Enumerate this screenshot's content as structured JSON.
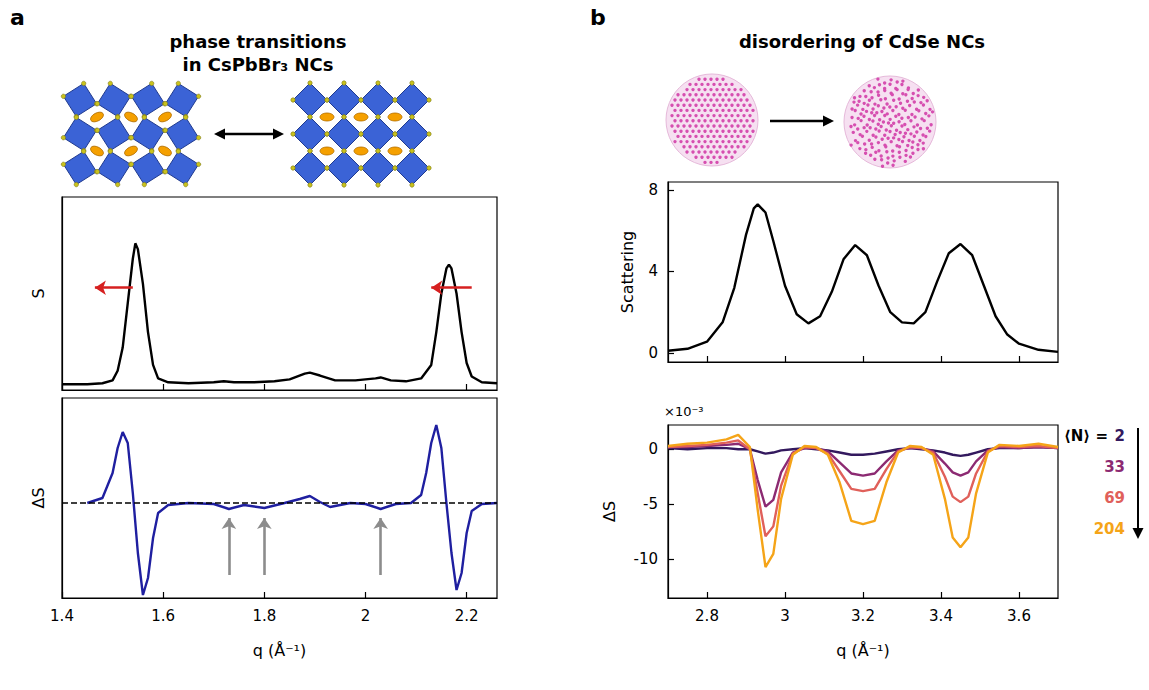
{
  "panels": [
    {
      "letter": "a",
      "title": "phase transitions in CsPbBr₃ NCs"
    },
    {
      "letter": "b",
      "title": "disordering of CdSe NCs"
    }
  ],
  "chart_data": [
    {
      "type": "line",
      "ylabel": "S",
      "color": "#000000",
      "x": [
        1.4,
        1.45,
        1.48,
        1.5,
        1.51,
        1.52,
        1.53,
        1.54,
        1.545,
        1.55,
        1.56,
        1.57,
        1.58,
        1.59,
        1.61,
        1.65,
        1.7,
        1.72,
        1.74,
        1.78,
        1.82,
        1.85,
        1.88,
        1.89,
        1.91,
        1.94,
        1.98,
        2.02,
        2.03,
        2.05,
        2.08,
        2.11,
        2.13,
        2.14,
        2.15,
        2.16,
        2.165,
        2.17,
        2.18,
        2.19,
        2.2,
        2.21,
        2.23,
        2.26
      ],
      "values": [
        0.03,
        0.03,
        0.035,
        0.05,
        0.1,
        0.22,
        0.45,
        0.68,
        0.76,
        0.73,
        0.55,
        0.3,
        0.13,
        0.06,
        0.04,
        0.035,
        0.04,
        0.045,
        0.04,
        0.04,
        0.045,
        0.055,
        0.085,
        0.09,
        0.075,
        0.05,
        0.05,
        0.06,
        0.065,
        0.05,
        0.045,
        0.06,
        0.13,
        0.3,
        0.5,
        0.63,
        0.65,
        0.63,
        0.5,
        0.3,
        0.14,
        0.07,
        0.04,
        0.035
      ],
      "xlim": [
        1.4,
        2.26
      ],
      "xticks": [
        1.4,
        1.6,
        1.8,
        2,
        2.2
      ],
      "ylim": [
        0,
        1
      ],
      "tick_labels": false,
      "arrows": [
        {
          "x": [
            1.54,
            1.465
          ],
          "y": [
            0.53,
            0.53
          ],
          "color": "#d62020"
        },
        {
          "x": [
            2.21,
            2.13
          ],
          "y": [
            0.53,
            0.53
          ],
          "color": "#d62020"
        }
      ]
    },
    {
      "type": "line",
      "ylabel": "ΔS",
      "xlabel": "q (Å⁻¹)",
      "color": "#1f1fa0",
      "x": [
        1.45,
        1.48,
        1.5,
        1.51,
        1.52,
        1.53,
        1.54,
        1.55,
        1.56,
        1.57,
        1.58,
        1.59,
        1.61,
        1.65,
        1.7,
        1.73,
        1.76,
        1.8,
        1.84,
        1.87,
        1.89,
        1.91,
        1.93,
        1.97,
        2.0,
        2.03,
        2.06,
        2.09,
        2.11,
        2.12,
        2.13,
        2.14,
        2.15,
        2.16,
        2.17,
        2.18,
        2.19,
        2.2,
        2.21,
        2.23,
        2.26
      ],
      "values": [
        0,
        0.05,
        0.3,
        0.55,
        0.71,
        0.6,
        0.1,
        -0.5,
        -0.92,
        -0.75,
        -0.35,
        -0.1,
        -0.02,
        0,
        -0.01,
        -0.06,
        -0.02,
        -0.05,
        0,
        0.04,
        0.07,
        0.01,
        -0.04,
        0,
        -0.01,
        -0.06,
        -0.01,
        0,
        0.08,
        0.3,
        0.6,
        0.78,
        0.55,
        0,
        -0.5,
        -0.87,
        -0.7,
        -0.3,
        -0.08,
        -0.01,
        0
      ],
      "xlim": [
        1.4,
        2.26
      ],
      "xticks": [
        1.4,
        1.6,
        1.8,
        2,
        2.2
      ],
      "ylim": [
        -0.95,
        1.05
      ],
      "tick_labels": "x",
      "hlines": [
        {
          "y": 0,
          "line_style": "dashed",
          "color": "#000000"
        }
      ],
      "arrows": [
        {
          "x": [
            1.73,
            1.73
          ],
          "y": [
            -0.72,
            -0.15
          ],
          "color": "#8c8c8c"
        },
        {
          "x": [
            1.8,
            1.8
          ],
          "y": [
            -0.72,
            -0.15
          ],
          "color": "#8c8c8c"
        },
        {
          "x": [
            2.03,
            2.03
          ],
          "y": [
            -0.72,
            -0.15
          ],
          "color": "#8c8c8c"
        }
      ]
    },
    {
      "type": "line",
      "ylabel": "Scattering",
      "color": "#000000",
      "x": [
        2.7,
        2.75,
        2.8,
        2.84,
        2.87,
        2.9,
        2.92,
        2.93,
        2.95,
        2.97,
        3.0,
        3.03,
        3.06,
        3.09,
        3.12,
        3.15,
        3.18,
        3.21,
        3.24,
        3.27,
        3.3,
        3.33,
        3.36,
        3.39,
        3.42,
        3.45,
        3.48,
        3.51,
        3.54,
        3.57,
        3.6,
        3.65,
        3.7
      ],
      "values": [
        0.1,
        0.2,
        0.55,
        1.5,
        3.2,
        5.8,
        7.1,
        7.3,
        6.9,
        5.5,
        3.3,
        1.9,
        1.45,
        1.8,
        3.0,
        4.6,
        5.3,
        4.8,
        3.3,
        2.0,
        1.5,
        1.45,
        2.0,
        3.5,
        4.9,
        5.35,
        4.8,
        3.3,
        1.8,
        0.9,
        0.45,
        0.15,
        0.05
      ],
      "xlim": [
        2.7,
        3.7
      ],
      "xticks": [
        2.8,
        3,
        3.2,
        3.4,
        3.6
      ],
      "ylim": [
        -0.45,
        8.4
      ],
      "yticks": [
        0,
        4,
        8
      ],
      "tick_labels": "y"
    },
    {
      "type": "line",
      "ylabel": "ΔS",
      "xlabel": "q (Å⁻¹)",
      "yscale_label": "×10⁻³",
      "legend": "right",
      "legend_title": "⟨N⟩ =",
      "x": [
        2.7,
        2.75,
        2.8,
        2.85,
        2.88,
        2.91,
        2.93,
        2.95,
        2.97,
        2.99,
        3.02,
        3.05,
        3.08,
        3.11,
        3.14,
        3.17,
        3.2,
        3.23,
        3.26,
        3.29,
        3.32,
        3.35,
        3.38,
        3.41,
        3.43,
        3.45,
        3.47,
        3.49,
        3.52,
        3.55,
        3.6,
        3.65,
        3.7
      ],
      "series": [
        {
          "name": "2",
          "color": "#33195e",
          "values": [
            0.1,
            0,
            0.1,
            0.1,
            0,
            0,
            -0.2,
            -0.4,
            -0.3,
            -0.1,
            0,
            0.1,
            0,
            -0.1,
            -0.3,
            -0.5,
            -0.5,
            -0.4,
            -0.2,
            0,
            0.1,
            0,
            -0.1,
            -0.3,
            -0.5,
            -0.6,
            -0.5,
            -0.3,
            0,
            0.1,
            0.1,
            0.2,
            0.1
          ]
        },
        {
          "name": "33",
          "color": "#8c2a72",
          "values": [
            0.2,
            0.2,
            0.3,
            0.4,
            0.5,
            0,
            -2.8,
            -5.2,
            -4.6,
            -2.1,
            -0.3,
            0.1,
            0.1,
            -0.2,
            -1.2,
            -2.2,
            -2.4,
            -2.2,
            -1.1,
            -0.1,
            0.1,
            0.1,
            -0.2,
            -1.3,
            -2.1,
            -2.4,
            -2.1,
            -1.1,
            -0.1,
            0.2,
            0.1,
            0.2,
            0.1
          ]
        },
        {
          "name": "69",
          "color": "#e0605a",
          "values": [
            0.2,
            0.3,
            0.4,
            0.6,
            0.8,
            0,
            -4.0,
            -7.9,
            -7.0,
            -3.3,
            -0.4,
            0.2,
            0.1,
            -0.4,
            -2.0,
            -3.6,
            -3.8,
            -3.6,
            -1.8,
            -0.2,
            0.2,
            0.1,
            -0.3,
            -2.5,
            -4.3,
            -4.8,
            -4.3,
            -2.2,
            -0.2,
            0.3,
            0.2,
            0.3,
            0.1
          ]
        },
        {
          "name": "204",
          "color": "#f5a418",
          "values": [
            0.3,
            0.5,
            0.6,
            0.9,
            1.3,
            0.2,
            -5.5,
            -10.7,
            -9.5,
            -4.5,
            -0.5,
            0.3,
            0.2,
            -0.5,
            -3.0,
            -6.5,
            -6.8,
            -6.5,
            -3.0,
            -0.3,
            0.3,
            0.2,
            -0.5,
            -4.5,
            -8.0,
            -8.9,
            -8.0,
            -4.0,
            -0.3,
            0.4,
            0.3,
            0.5,
            0.2
          ]
        }
      ],
      "xlim": [
        2.7,
        3.7
      ],
      "xticks": [
        2.8,
        3,
        3.2,
        3.4,
        3.6
      ],
      "ylim": [
        -13.5,
        2.2
      ],
      "yticks": [
        -10,
        -5,
        0
      ]
    }
  ]
}
